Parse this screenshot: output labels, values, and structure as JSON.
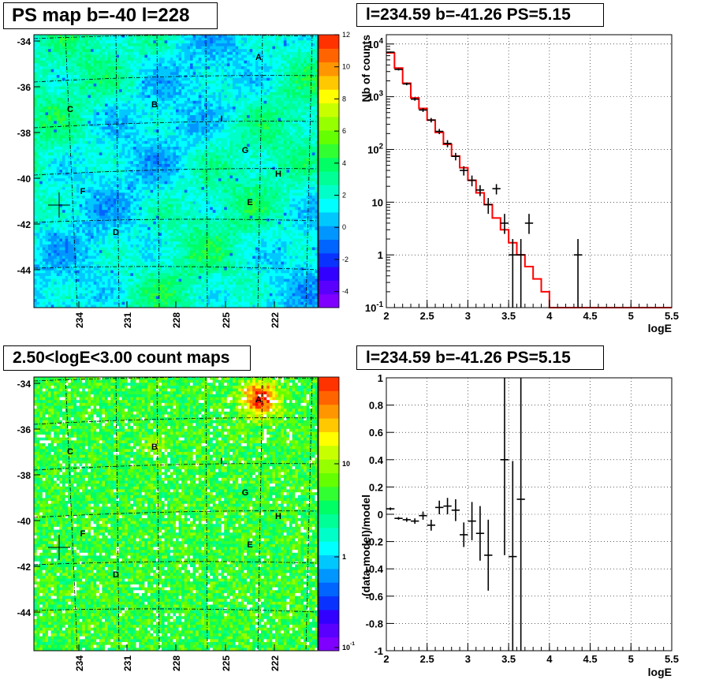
{
  "panels": {
    "ps_map": {
      "title": "PS map b=-40 l=228"
    },
    "spectrum": {
      "title": "l=234.59 b=-41.26 PS=5.15"
    },
    "count_map": {
      "title": "2.50<logE<3.00 count maps"
    },
    "residual": {
      "title": "l=234.59 b=-41.26 PS=5.15"
    }
  },
  "chart_data": [
    {
      "type": "heatmap",
      "title": "PS map b=-40 l=228",
      "y_ticks": [
        "-34",
        "-36",
        "-38",
        "-40",
        "-42",
        "-44"
      ],
      "x_ticks": [
        "234",
        "231",
        "228",
        "225",
        "222"
      ],
      "colorbar_ticks": [
        "12",
        "10",
        "8",
        "6",
        "4",
        "2",
        "0",
        "-2",
        "-4"
      ],
      "colorbar_range": [
        -5,
        12
      ],
      "sources": [
        "A",
        "B",
        "C",
        "D",
        "E",
        "F",
        "G",
        "H",
        "I"
      ],
      "colors": {
        "low": "#7f00ff",
        "mid": "#00ffff",
        "high": "#ff0000"
      }
    },
    {
      "type": "line",
      "title": "l=234.59 b=-41.26 PS=5.15",
      "xlabel": "logE",
      "ylabel": "Nb of counts",
      "log_y": true,
      "xlim": [
        2,
        5.5
      ],
      "ylim": [
        0.1,
        15000
      ],
      "x_ticks": [
        "2",
        "2.5",
        "3",
        "3.5",
        "4",
        "4.5",
        "5",
        "5.5"
      ],
      "y_ticks": [
        "10^-1",
        "1",
        "10",
        "10^2",
        "10^3",
        "10^4"
      ],
      "model_step": {
        "edges": [
          2,
          2.1,
          2.2,
          2.3,
          2.4,
          2.5,
          2.6,
          2.7,
          2.8,
          2.9,
          3.0,
          3.1,
          3.2,
          3.3,
          3.4,
          3.5,
          3.6,
          3.7,
          3.8,
          3.9,
          4.0,
          5.5
        ],
        "values": [
          6800,
          3500,
          1800,
          950,
          600,
          360,
          210,
          125,
          75,
          45,
          26,
          15,
          9,
          5,
          3,
          1.7,
          1,
          0.6,
          0.35,
          0.2,
          0.1
        ]
      },
      "points": [
        {
          "x": 2.05,
          "y": 7000,
          "lo": 6800,
          "hi": 7200
        },
        {
          "x": 2.15,
          "y": 3300,
          "lo": 3150,
          "hi": 3450
        },
        {
          "x": 2.25,
          "y": 1750,
          "lo": 1650,
          "hi": 1850
        },
        {
          "x": 2.35,
          "y": 900,
          "lo": 840,
          "hi": 960
        },
        {
          "x": 2.45,
          "y": 560,
          "lo": 515,
          "hi": 605
        },
        {
          "x": 2.55,
          "y": 360,
          "lo": 325,
          "hi": 395
        },
        {
          "x": 2.65,
          "y": 220,
          "lo": 195,
          "hi": 245
        },
        {
          "x": 2.75,
          "y": 130,
          "lo": 110,
          "hi": 150
        },
        {
          "x": 2.85,
          "y": 74,
          "lo": 62,
          "hi": 86
        },
        {
          "x": 2.95,
          "y": 40,
          "lo": 32,
          "hi": 48
        },
        {
          "x": 3.05,
          "y": 26,
          "lo": 20,
          "hi": 32
        },
        {
          "x": 3.15,
          "y": 17,
          "lo": 13,
          "hi": 21
        },
        {
          "x": 3.25,
          "y": 9,
          "lo": 6,
          "hi": 12
        },
        {
          "x": 3.35,
          "y": 18,
          "lo": 14,
          "hi": 22
        },
        {
          "x": 3.45,
          "y": 4,
          "lo": 2.5,
          "hi": 6
        },
        {
          "x": 3.55,
          "y": 1,
          "lo": 0.1,
          "hi": 2
        },
        {
          "x": 3.65,
          "y": 1,
          "lo": 0.1,
          "hi": 2
        },
        {
          "x": 3.75,
          "y": 4,
          "lo": 2.5,
          "hi": 6
        },
        {
          "x": 4.35,
          "y": 1,
          "lo": 0.1,
          "hi": 2
        }
      ],
      "colors": {
        "model": "#ff0000",
        "data": "#000000"
      }
    },
    {
      "type": "heatmap",
      "title": "2.50<logE<3.00 count maps",
      "y_ticks": [
        "-34",
        "-36",
        "-38",
        "-40",
        "-42",
        "-44"
      ],
      "x_ticks": [
        "234",
        "231",
        "228",
        "225",
        "222"
      ],
      "colorbar_ticks": [
        "10",
        "1",
        "10^-1"
      ],
      "log_scale": true,
      "sources": [
        "A",
        "B",
        "C",
        "D",
        "E",
        "F",
        "G",
        "H",
        "I"
      ]
    },
    {
      "type": "scatter",
      "title": "l=234.59 b=-41.26 PS=5.15",
      "xlabel": "logE",
      "ylabel": "(data-model)/model",
      "xlim": [
        2,
        5.5
      ],
      "ylim": [
        -1,
        1
      ],
      "x_ticks": [
        "2",
        "2.5",
        "3",
        "3.5",
        "4",
        "4.5",
        "5",
        "5.5"
      ],
      "y_ticks": [
        "1",
        "0.8",
        "0.6",
        "0.4",
        "0.2",
        "0",
        "-0.2",
        "-0.4",
        "-0.6",
        "-0.8",
        "-1"
      ],
      "points": [
        {
          "x": 2.05,
          "y": 0.04,
          "err": 0.01
        },
        {
          "x": 2.15,
          "y": -0.03,
          "err": 0.01
        },
        {
          "x": 2.25,
          "y": -0.04,
          "err": 0.015
        },
        {
          "x": 2.35,
          "y": -0.05,
          "err": 0.02
        },
        {
          "x": 2.45,
          "y": -0.01,
          "err": 0.03
        },
        {
          "x": 2.55,
          "y": -0.08,
          "err": 0.04
        },
        {
          "x": 2.65,
          "y": 0.05,
          "err": 0.05
        },
        {
          "x": 2.75,
          "y": 0.06,
          "err": 0.06
        },
        {
          "x": 2.85,
          "y": 0.03,
          "err": 0.08
        },
        {
          "x": 2.95,
          "y": -0.15,
          "err": 0.09
        },
        {
          "x": 3.05,
          "y": -0.05,
          "err": 0.14
        },
        {
          "x": 3.15,
          "y": -0.14,
          "err": 0.2
        },
        {
          "x": 3.25,
          "y": -0.3,
          "err": 0.26
        },
        {
          "x": 3.45,
          "y": 0.4,
          "err": 0.7
        },
        {
          "x": 3.55,
          "y": -0.31,
          "err": 0.7
        },
        {
          "x": 3.65,
          "y": 0.11,
          "err": 1.2
        }
      ]
    }
  ]
}
